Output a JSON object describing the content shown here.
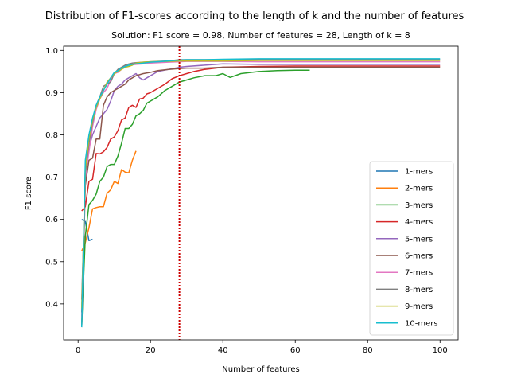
{
  "chart_data": {
    "type": "line",
    "title": "Distribution of F1-scores according to the length of k and the number of features",
    "subtitle": "Solution: F1 score = 0.98, Number of features = 28, Length of k = 8",
    "xlabel": "Number of features",
    "ylabel": "F1 score",
    "xlim": [
      -4,
      105
    ],
    "ylim": [
      0.315,
      1.01
    ],
    "xticks": [
      0,
      20,
      40,
      60,
      80,
      100
    ],
    "yticks": [
      0.4,
      0.5,
      0.6,
      0.7,
      0.8,
      0.9,
      1.0
    ],
    "ytick_labels": [
      "0.4",
      "0.5",
      "0.6",
      "0.7",
      "0.8",
      "0.9",
      "1.0"
    ],
    "legend_position": "lower right",
    "vline": {
      "x": 28,
      "color": "#cc0000",
      "style": "dotted"
    },
    "series": [
      {
        "name": "1-mers",
        "color": "#1f77b4",
        "points": [
          [
            1,
            0.6
          ],
          [
            2,
            0.595
          ],
          [
            3,
            0.55
          ],
          [
            4,
            0.553
          ]
        ]
      },
      {
        "name": "2-mers",
        "color": "#ff7f0e",
        "points": [
          [
            1,
            0.525
          ],
          [
            2,
            0.545
          ],
          [
            3,
            0.58
          ],
          [
            4,
            0.625
          ],
          [
            5,
            0.628
          ],
          [
            6,
            0.63
          ],
          [
            7,
            0.63
          ],
          [
            8,
            0.662
          ],
          [
            9,
            0.67
          ],
          [
            10,
            0.69
          ],
          [
            11,
            0.685
          ],
          [
            12,
            0.718
          ],
          [
            13,
            0.712
          ],
          [
            14,
            0.71
          ],
          [
            15,
            0.74
          ],
          [
            16,
            0.762
          ]
        ]
      },
      {
        "name": "3-mers",
        "color": "#2ca02c",
        "points": [
          [
            1,
            0.35
          ],
          [
            2,
            0.56
          ],
          [
            3,
            0.635
          ],
          [
            4,
            0.645
          ],
          [
            5,
            0.66
          ],
          [
            6,
            0.69
          ],
          [
            7,
            0.7
          ],
          [
            8,
            0.725
          ],
          [
            9,
            0.73
          ],
          [
            10,
            0.73
          ],
          [
            11,
            0.75
          ],
          [
            12,
            0.78
          ],
          [
            13,
            0.815
          ],
          [
            14,
            0.815
          ],
          [
            15,
            0.825
          ],
          [
            16,
            0.845
          ],
          [
            17,
            0.85
          ],
          [
            18,
            0.858
          ],
          [
            19,
            0.875
          ],
          [
            20,
            0.88
          ],
          [
            22,
            0.89
          ],
          [
            24,
            0.905
          ],
          [
            26,
            0.915
          ],
          [
            28,
            0.925
          ],
          [
            30,
            0.93
          ],
          [
            32,
            0.935
          ],
          [
            35,
            0.94
          ],
          [
            38,
            0.94
          ],
          [
            40,
            0.945
          ],
          [
            42,
            0.936
          ],
          [
            45,
            0.945
          ],
          [
            48,
            0.948
          ],
          [
            50,
            0.95
          ],
          [
            55,
            0.952
          ],
          [
            60,
            0.953
          ],
          [
            64,
            0.953
          ]
        ]
      },
      {
        "name": "4-mers",
        "color": "#d62728",
        "points": [
          [
            1,
            0.62
          ],
          [
            2,
            0.63
          ],
          [
            3,
            0.69
          ],
          [
            4,
            0.695
          ],
          [
            5,
            0.756
          ],
          [
            6,
            0.755
          ],
          [
            7,
            0.76
          ],
          [
            8,
            0.77
          ],
          [
            9,
            0.79
          ],
          [
            10,
            0.795
          ],
          [
            11,
            0.81
          ],
          [
            12,
            0.835
          ],
          [
            13,
            0.84
          ],
          [
            14,
            0.865
          ],
          [
            15,
            0.87
          ],
          [
            16,
            0.865
          ],
          [
            17,
            0.885
          ],
          [
            18,
            0.887
          ],
          [
            19,
            0.897
          ],
          [
            20,
            0.9
          ],
          [
            22,
            0.91
          ],
          [
            24,
            0.92
          ],
          [
            26,
            0.933
          ],
          [
            28,
            0.94
          ],
          [
            30,
            0.945
          ],
          [
            32,
            0.95
          ],
          [
            35,
            0.955
          ],
          [
            40,
            0.96
          ],
          [
            50,
            0.962
          ],
          [
            60,
            0.963
          ],
          [
            80,
            0.963
          ],
          [
            100,
            0.963
          ]
        ]
      },
      {
        "name": "5-mers",
        "color": "#9467bd",
        "points": [
          [
            1,
            0.41
          ],
          [
            2,
            0.69
          ],
          [
            3,
            0.77
          ],
          [
            4,
            0.8
          ],
          [
            5,
            0.82
          ],
          [
            6,
            0.84
          ],
          [
            7,
            0.85
          ],
          [
            8,
            0.86
          ],
          [
            9,
            0.88
          ],
          [
            10,
            0.905
          ],
          [
            11,
            0.915
          ],
          [
            12,
            0.92
          ],
          [
            13,
            0.93
          ],
          [
            14,
            0.935
          ],
          [
            15,
            0.94
          ],
          [
            16,
            0.945
          ],
          [
            17,
            0.935
          ],
          [
            18,
            0.93
          ],
          [
            19,
            0.935
          ],
          [
            20,
            0.94
          ],
          [
            22,
            0.95
          ],
          [
            25,
            0.955
          ],
          [
            28,
            0.96
          ],
          [
            30,
            0.962
          ],
          [
            35,
            0.965
          ],
          [
            40,
            0.968
          ],
          [
            50,
            0.967
          ],
          [
            60,
            0.967
          ],
          [
            80,
            0.967
          ],
          [
            100,
            0.967
          ]
        ]
      },
      {
        "name": "6-mers",
        "color": "#8c564b",
        "points": [
          [
            1,
            0.345
          ],
          [
            2,
            0.68
          ],
          [
            3,
            0.74
          ],
          [
            4,
            0.745
          ],
          [
            5,
            0.79
          ],
          [
            6,
            0.79
          ],
          [
            7,
            0.87
          ],
          [
            8,
            0.89
          ],
          [
            9,
            0.9
          ],
          [
            10,
            0.905
          ],
          [
            11,
            0.91
          ],
          [
            12,
            0.915
          ],
          [
            13,
            0.92
          ],
          [
            14,
            0.93
          ],
          [
            15,
            0.935
          ],
          [
            16,
            0.94
          ],
          [
            18,
            0.945
          ],
          [
            20,
            0.948
          ],
          [
            22,
            0.952
          ],
          [
            25,
            0.955
          ],
          [
            28,
            0.957
          ],
          [
            30,
            0.958
          ],
          [
            35,
            0.958
          ],
          [
            40,
            0.96
          ],
          [
            50,
            0.96
          ],
          [
            60,
            0.96
          ],
          [
            80,
            0.96
          ],
          [
            100,
            0.96
          ]
        ]
      },
      {
        "name": "7-mers",
        "color": "#e377c2",
        "points": [
          [
            1,
            0.37
          ],
          [
            2,
            0.7
          ],
          [
            3,
            0.76
          ],
          [
            4,
            0.82
          ],
          [
            5,
            0.86
          ],
          [
            6,
            0.885
          ],
          [
            7,
            0.9
          ],
          [
            8,
            0.91
          ],
          [
            9,
            0.93
          ],
          [
            10,
            0.945
          ],
          [
            11,
            0.948
          ],
          [
            12,
            0.955
          ],
          [
            13,
            0.962
          ],
          [
            14,
            0.965
          ],
          [
            15,
            0.966
          ],
          [
            16,
            0.967
          ],
          [
            18,
            0.968
          ],
          [
            20,
            0.97
          ],
          [
            25,
            0.972
          ],
          [
            28,
            0.973
          ],
          [
            30,
            0.974
          ],
          [
            35,
            0.974
          ],
          [
            40,
            0.974
          ],
          [
            50,
            0.973
          ],
          [
            60,
            0.973
          ],
          [
            80,
            0.973
          ],
          [
            100,
            0.973
          ]
        ]
      },
      {
        "name": "8-mers",
        "color": "#7f7f7f",
        "points": [
          [
            1,
            0.38
          ],
          [
            2,
            0.71
          ],
          [
            3,
            0.78
          ],
          [
            4,
            0.83
          ],
          [
            5,
            0.87
          ],
          [
            6,
            0.89
          ],
          [
            7,
            0.915
          ],
          [
            8,
            0.92
          ],
          [
            9,
            0.925
          ],
          [
            10,
            0.945
          ],
          [
            11,
            0.955
          ],
          [
            12,
            0.96
          ],
          [
            13,
            0.965
          ],
          [
            14,
            0.968
          ],
          [
            15,
            0.97
          ],
          [
            16,
            0.971
          ],
          [
            18,
            0.972
          ],
          [
            20,
            0.973
          ],
          [
            22,
            0.974
          ],
          [
            25,
            0.975
          ],
          [
            28,
            0.978
          ],
          [
            30,
            0.978
          ],
          [
            35,
            0.978
          ],
          [
            40,
            0.978
          ],
          [
            50,
            0.978
          ],
          [
            60,
            0.978
          ],
          [
            80,
            0.978
          ],
          [
            100,
            0.978
          ]
        ]
      },
      {
        "name": "9-mers",
        "color": "#bcbd22",
        "points": [
          [
            1,
            0.39
          ],
          [
            2,
            0.72
          ],
          [
            3,
            0.79
          ],
          [
            4,
            0.835
          ],
          [
            5,
            0.865
          ],
          [
            6,
            0.885
          ],
          [
            7,
            0.905
          ],
          [
            8,
            0.925
          ],
          [
            9,
            0.935
          ],
          [
            10,
            0.945
          ],
          [
            11,
            0.95
          ],
          [
            12,
            0.955
          ],
          [
            13,
            0.96
          ],
          [
            14,
            0.962
          ],
          [
            15,
            0.965
          ],
          [
            16,
            0.97
          ],
          [
            18,
            0.972
          ],
          [
            20,
            0.973
          ],
          [
            25,
            0.974
          ],
          [
            28,
            0.975
          ],
          [
            30,
            0.975
          ],
          [
            35,
            0.975
          ],
          [
            40,
            0.975
          ],
          [
            50,
            0.976
          ],
          [
            60,
            0.976
          ],
          [
            80,
            0.976
          ],
          [
            100,
            0.976
          ]
        ]
      },
      {
        "name": "10-mers",
        "color": "#17becf",
        "points": [
          [
            1,
            0.345
          ],
          [
            2,
            0.74
          ],
          [
            3,
            0.8
          ],
          [
            4,
            0.84
          ],
          [
            5,
            0.87
          ],
          [
            6,
            0.89
          ],
          [
            7,
            0.905
          ],
          [
            8,
            0.92
          ],
          [
            9,
            0.935
          ],
          [
            10,
            0.948
          ],
          [
            11,
            0.952
          ],
          [
            12,
            0.958
          ],
          [
            13,
            0.962
          ],
          [
            14,
            0.965
          ],
          [
            15,
            0.967
          ],
          [
            16,
            0.968
          ],
          [
            18,
            0.97
          ],
          [
            20,
            0.972
          ],
          [
            22,
            0.973
          ],
          [
            25,
            0.975
          ],
          [
            28,
            0.977
          ],
          [
            30,
            0.978
          ],
          [
            35,
            0.978
          ],
          [
            40,
            0.979
          ],
          [
            50,
            0.98
          ],
          [
            60,
            0.98
          ],
          [
            80,
            0.98
          ],
          [
            100,
            0.98
          ]
        ]
      }
    ]
  }
}
